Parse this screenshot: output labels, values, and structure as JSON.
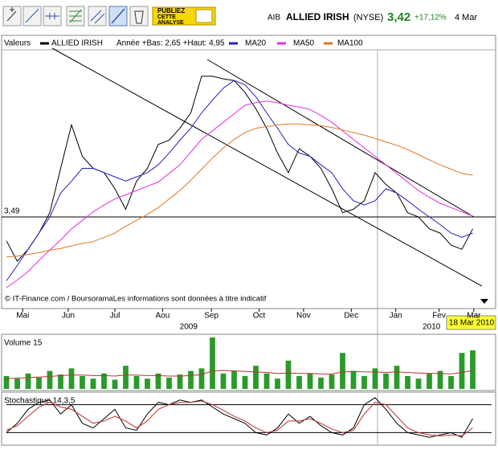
{
  "header": {
    "symbol": "AIB",
    "name": "ALLIED IRISH",
    "market": "(NYSE)",
    "price": "3,42",
    "change": "+17,12%",
    "date": "4 Mar",
    "button": [
      "PUBLIEZ",
      "CETTE",
      "ANALYSE"
    ],
    "cursor_date": "18 Mar 2010"
  },
  "chart_data": [
    {
      "type": "line",
      "legend_title": "Valeurs",
      "subtitle": "Année +Bas: 2,65 +Haut: 4,95",
      "footnote": "© IT-Finance.com / BoursoramaLes informations sont données à titre indicatif",
      "x": [
        0,
        1,
        2,
        3,
        4,
        5,
        6,
        7,
        8,
        9,
        10,
        11,
        12,
        13,
        14,
        15,
        16,
        17,
        18,
        19,
        20,
        21,
        22,
        23,
        24,
        25,
        26,
        27,
        28,
        29,
        30,
        31,
        32,
        33,
        34,
        35,
        36,
        37,
        38,
        39,
        40,
        41,
        42,
        43
      ],
      "xlim": [
        0,
        43.85
      ],
      "ylim": [
        2.5,
        5.45
      ],
      "xticks": [
        {
          "value": 1.5,
          "label": "Mai"
        },
        {
          "value": 5.7,
          "label": "Jun"
        },
        {
          "value": 10,
          "label": "Jul"
        },
        {
          "value": 14.4,
          "label": "Aou"
        },
        {
          "value": 18.9,
          "label": "Sep"
        },
        {
          "value": 23.3,
          "label": "Oct"
        },
        {
          "value": 27.4,
          "label": "Nov"
        },
        {
          "value": 31.8,
          "label": "Dec"
        },
        {
          "value": 35.9,
          "label": "Jan"
        },
        {
          "value": 39.9,
          "label": "Fev"
        },
        {
          "value": 43.1,
          "label": "Mar"
        }
      ],
      "year_labels": [
        {
          "value": 16.8,
          "label": "2009"
        },
        {
          "value": 39.2,
          "label": "2010"
        }
      ],
      "reference": {
        "value": 3.49,
        "label": "3,49"
      },
      "series": [
        {
          "name": "ALLIED IRISH",
          "color": "#000000",
          "values": [
            3.21,
            2.97,
            3.11,
            3.3,
            3.54,
            4.06,
            4.57,
            4.2,
            4.06,
            4.01,
            3.82,
            3.58,
            3.91,
            4.06,
            4.34,
            4.39,
            4.53,
            4.71,
            5.14,
            5.14,
            5.11,
            5.09,
            4.95,
            4.76,
            4.53,
            4.24,
            4.01,
            4.29,
            4.2,
            4.06,
            3.82,
            3.54,
            3.58,
            3.68,
            4.01,
            3.87,
            3.77,
            3.54,
            3.49,
            3.35,
            3.3,
            3.16,
            3.11,
            3.35
          ]
        },
        {
          "name": "MA20",
          "color": "#2020c0",
          "values": [
            2.74,
            2.92,
            3.11,
            3.3,
            3.49,
            3.77,
            3.91,
            4.06,
            4.06,
            4.01,
            3.96,
            3.91,
            3.96,
            4.01,
            4.1,
            4.24,
            4.39,
            4.53,
            4.71,
            4.86,
            5.0,
            5.09,
            5.04,
            4.9,
            4.71,
            4.53,
            4.34,
            4.24,
            4.2,
            4.1,
            4.01,
            3.82,
            3.68,
            3.63,
            3.68,
            3.82,
            3.77,
            3.68,
            3.58,
            3.49,
            3.4,
            3.3,
            3.25,
            3.3
          ]
        },
        {
          "name": "MA50",
          "color": "#e030e0",
          "values": [
            2.66,
            2.75,
            2.85,
            2.98,
            3.1,
            3.22,
            3.35,
            3.45,
            3.55,
            3.63,
            3.7,
            3.75,
            3.8,
            3.85,
            3.9,
            4.0,
            4.1,
            4.25,
            4.4,
            4.5,
            4.6,
            4.7,
            4.8,
            4.83,
            4.85,
            4.83,
            4.8,
            4.78,
            4.75,
            4.68,
            4.6,
            4.5,
            4.4,
            4.3,
            4.2,
            4.1,
            4.0,
            3.9,
            3.8,
            3.72,
            3.65,
            3.6,
            3.55,
            3.5
          ]
        },
        {
          "name": "MA100",
          "color": "#e07820",
          "values": [
            3.02,
            3.03,
            3.05,
            3.07,
            3.1,
            3.12,
            3.15,
            3.18,
            3.2,
            3.25,
            3.3,
            3.38,
            3.45,
            3.52,
            3.6,
            3.7,
            3.8,
            3.92,
            4.05,
            4.18,
            4.3,
            4.4,
            4.48,
            4.53,
            4.55,
            4.57,
            4.58,
            4.58,
            4.57,
            4.56,
            4.54,
            4.51,
            4.48,
            4.45,
            4.41,
            4.37,
            4.33,
            4.28,
            4.22,
            4.16,
            4.1,
            4.05,
            4.0,
            3.98
          ]
        }
      ]
    },
    {
      "type": "bar",
      "title": "Volume 15",
      "x": [
        0,
        1,
        2,
        3,
        4,
        5,
        6,
        7,
        8,
        9,
        10,
        11,
        12,
        13,
        14,
        15,
        16,
        17,
        18,
        19,
        20,
        21,
        22,
        23,
        24,
        25,
        26,
        27,
        28,
        29,
        30,
        31,
        32,
        33,
        34,
        35,
        36,
        37,
        38,
        39,
        40,
        41,
        42,
        43
      ],
      "xlim": [
        0,
        43.85
      ],
      "ylim": [
        0,
        100
      ],
      "series": [
        {
          "color": "#2a9a2a",
          "values": [
            25,
            20,
            30,
            22,
            35,
            28,
            40,
            25,
            20,
            30,
            18,
            45,
            25,
            20,
            30,
            22,
            28,
            35,
            40,
            100,
            30,
            35,
            25,
            45,
            30,
            20,
            55,
            25,
            30,
            22,
            28,
            70,
            35,
            25,
            40,
            30,
            45,
            25,
            20,
            30,
            35,
            25,
            70,
            75
          ]
        },
        {
          "color": "#c03030",
          "type": "line",
          "values": [
            20,
            21,
            22,
            23,
            24,
            26,
            27,
            27,
            26,
            26,
            25,
            27,
            27,
            26,
            26,
            25,
            25,
            26,
            28,
            35,
            36,
            35,
            34,
            33,
            32,
            30,
            31,
            30,
            30,
            29,
            29,
            33,
            34,
            33,
            33,
            32,
            33,
            32,
            31,
            30,
            30,
            29,
            32,
            36
          ]
        }
      ]
    },
    {
      "type": "line",
      "title": "Stochastique 14,3,5",
      "x": [
        0,
        1,
        2,
        3,
        4,
        5,
        6,
        7,
        8,
        9,
        10,
        11,
        12,
        13,
        14,
        15,
        16,
        17,
        18,
        19,
        20,
        21,
        22,
        23,
        24,
        25,
        26,
        27,
        28,
        29,
        30,
        31,
        32,
        33,
        34,
        35,
        36,
        37,
        38,
        39,
        40,
        41,
        42,
        43
      ],
      "xlim": [
        0,
        43.85
      ],
      "ylim": [
        0,
        100
      ],
      "levels": [
        20,
        80
      ],
      "series": [
        {
          "color": "#000000",
          "values": [
            20,
            40,
            70,
            85,
            90,
            60,
            80,
            40,
            30,
            50,
            70,
            30,
            25,
            60,
            85,
            80,
            90,
            85,
            90,
            75,
            60,
            50,
            40,
            20,
            15,
            30,
            60,
            40,
            55,
            35,
            20,
            15,
            30,
            80,
            95,
            70,
            40,
            20,
            15,
            10,
            15,
            20,
            10,
            50
          ]
        },
        {
          "color": "#c03030",
          "values": [
            25,
            35,
            55,
            75,
            85,
            75,
            70,
            55,
            40,
            45,
            55,
            45,
            30,
            45,
            70,
            80,
            85,
            85,
            88,
            80,
            68,
            55,
            45,
            30,
            20,
            25,
            45,
            45,
            50,
            40,
            28,
            20,
            25,
            60,
            85,
            80,
            55,
            30,
            20,
            15,
            13,
            15,
            13,
            30
          ]
        }
      ]
    }
  ]
}
